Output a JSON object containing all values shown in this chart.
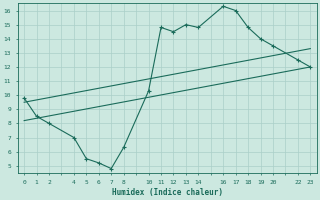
{
  "xlabel": "Humidex (Indice chaleur)",
  "background_color": "#cce8e0",
  "line_color": "#1a6b5a",
  "grid_color": "#aacfc8",
  "xlim": [
    -0.5,
    23.5
  ],
  "ylim": [
    4.5,
    16.5
  ],
  "xtick_positions": [
    0,
    1,
    2,
    3,
    4,
    5,
    6,
    7,
    8,
    9,
    10,
    11,
    12,
    13,
    14,
    15,
    16,
    17,
    18,
    19,
    20,
    21,
    22,
    23
  ],
  "xtick_labels": [
    "0",
    "1",
    "2",
    "",
    "4",
    "5",
    "6",
    "7",
    "8",
    "",
    "10",
    "11",
    "12",
    "13",
    "14",
    "",
    "16",
    "17",
    "18",
    "19",
    "20",
    "",
    "22",
    "23"
  ],
  "ytick_positions": [
    5,
    6,
    7,
    8,
    9,
    10,
    11,
    12,
    13,
    14,
    15,
    16
  ],
  "ytick_labels": [
    "5",
    "6",
    "7",
    "8",
    "9",
    "10",
    "11",
    "12",
    "13",
    "14",
    "15",
    "16"
  ],
  "line1_x": [
    0,
    1,
    2,
    4,
    5,
    6,
    7,
    8,
    10,
    11,
    12,
    13,
    14,
    16,
    17,
    18,
    19,
    20,
    22,
    23
  ],
  "line1_y": [
    9.8,
    8.5,
    8.0,
    7.0,
    5.5,
    5.2,
    4.8,
    6.3,
    10.3,
    14.8,
    14.5,
    15.0,
    14.8,
    16.3,
    16.0,
    14.8,
    14.0,
    13.5,
    12.5,
    12.0
  ],
  "line2_x": [
    0,
    23
  ],
  "line2_y": [
    8.2,
    12.0
  ],
  "line3_x": [
    0,
    23
  ],
  "line3_y": [
    9.5,
    13.3
  ]
}
